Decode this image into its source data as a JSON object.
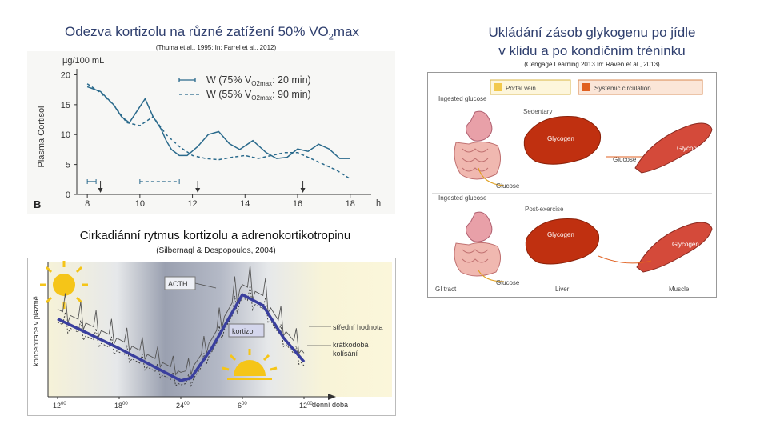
{
  "left_top": {
    "title_main": "Odezva kortizolu na různé  zatížení 50% VO",
    "title_sub": "2",
    "title_end": "max",
    "citation": "(Thuma et al., 1995; In: Farrel et al., 2012)"
  },
  "right_top": {
    "title_line1": "Ukládání zásob glykogenu po jídle",
    "title_line2": "v klidu a po kondičním tréninku",
    "citation": "(Cengage Learning 2013 In: Raven et al., 2013)"
  },
  "bottom_left": {
    "title": "Cirkadiánní rytmus kortizolu a adrenokortikotropinu",
    "citation": "(Silbernagl & Despopoulos, 2004)"
  },
  "cortisol_chart": {
    "type": "line",
    "panel_letter": "B",
    "y_unit": "µg/100 mL",
    "ylabel": "Plasma Cortisol",
    "xlabel": "h",
    "x_ticks": [
      "8",
      "10",
      "12",
      "14",
      "16",
      "18"
    ],
    "y_ticks": [
      "0",
      "5",
      "10",
      "15",
      "20"
    ],
    "xlim": [
      7.6,
      18.8
    ],
    "ylim": [
      0,
      21
    ],
    "legend": {
      "w75": {
        "prefix": "W (75% V",
        "sub": "O2max",
        "suffix": ": 20 min)"
      },
      "w55": {
        "prefix": "W (55% V",
        "sub": "O2max",
        "suffix": ": 90 min)"
      }
    },
    "series": [
      {
        "name": "W (75% VO2max: 20 min)",
        "style": "solid",
        "x": [
          8,
          8.5,
          9,
          9.3,
          9.6,
          9.9,
          10.2,
          10.5,
          10.8,
          11.0,
          11.2,
          11.5,
          11.8,
          12.2,
          12.6,
          13.0,
          13.4,
          13.8,
          14.3,
          14.8,
          15.2,
          15.6,
          16.0,
          16.4,
          16.8,
          17.2,
          17.6,
          18.0
        ],
        "y": [
          18,
          17.2,
          15,
          13,
          12,
          14,
          16,
          13,
          11,
          9,
          7.5,
          6.5,
          6.5,
          8,
          10,
          10.5,
          8.5,
          7.5,
          9,
          7,
          6,
          6.2,
          7.6,
          7.2,
          8.4,
          7.6,
          6,
          6
        ]
      },
      {
        "name": "W (55% VO2max: 90 min)",
        "style": "dashed",
        "x": [
          8,
          8.5,
          9,
          9.5,
          10,
          10.5,
          11,
          11.5,
          12,
          12.5,
          13,
          13.5,
          14,
          14.5,
          15,
          15.5,
          16,
          16.5,
          17,
          17.5,
          18
        ],
        "y": [
          18.5,
          17,
          15,
          12,
          11.5,
          13,
          10,
          8,
          6.5,
          6,
          5.8,
          6.2,
          6.5,
          6,
          6.5,
          7,
          7,
          6,
          5,
          4,
          2.6
        ]
      }
    ],
    "exercise_markers": [
      {
        "name": "w75",
        "start": 8,
        "end": 8.333
      },
      {
        "name": "w55",
        "start": 10,
        "end": 11.5
      }
    ],
    "meal_arrows_x": [
      8.5,
      12.2,
      16.2
    ]
  },
  "glycogen_diagram": {
    "labels": {
      "portal_vein": "Portal vein",
      "systemic_circulation": "Systemic circulation",
      "ingested_glucose": "Ingested glucose",
      "sedentary": "Sedentary",
      "post_exercise": "Post-exercise",
      "glycogen": "Glycogen",
      "glucose": "Glucose",
      "gi_tract": "GI tract",
      "liver": "Liver",
      "muscle": "Muscle"
    },
    "colors": {
      "legend_portal": "#f2c94c",
      "legend_systemic": "#e06020",
      "liver": "#c03010",
      "muscle": "#d44a3a"
    }
  },
  "circadian_chart": {
    "type": "line",
    "ylabel": "koncentrace v plazmě",
    "xlabel": "denní doba",
    "x_ticks": [
      {
        "base": "12",
        "sup": "00"
      },
      {
        "base": "18",
        "sup": "00"
      },
      {
        "base": "24",
        "sup": "00"
      },
      {
        "base": "6",
        "sup": "00"
      },
      {
        "base": "12",
        "sup": "00"
      }
    ],
    "labels": {
      "acth": "ACTH",
      "kortizol": "kortizol",
      "mean": "střední hodnota",
      "short1": "krátkodobá",
      "short2": "kolísání"
    },
    "series": [
      {
        "name": "střední hodnota",
        "hours_from_noon": [
          0,
          3,
          6,
          9,
          11,
          12,
          13,
          15,
          18,
          20,
          22,
          24
        ],
        "level": [
          0.58,
          0.47,
          0.36,
          0.24,
          0.16,
          0.12,
          0.14,
          0.36,
          0.76,
          0.68,
          0.44,
          0.26
        ]
      }
    ],
    "colors": {
      "mean_line": "#3a3f9e",
      "night_band": "#9aa0b0",
      "sun": "#f5c518",
      "moon": "#f2c200"
    }
  }
}
